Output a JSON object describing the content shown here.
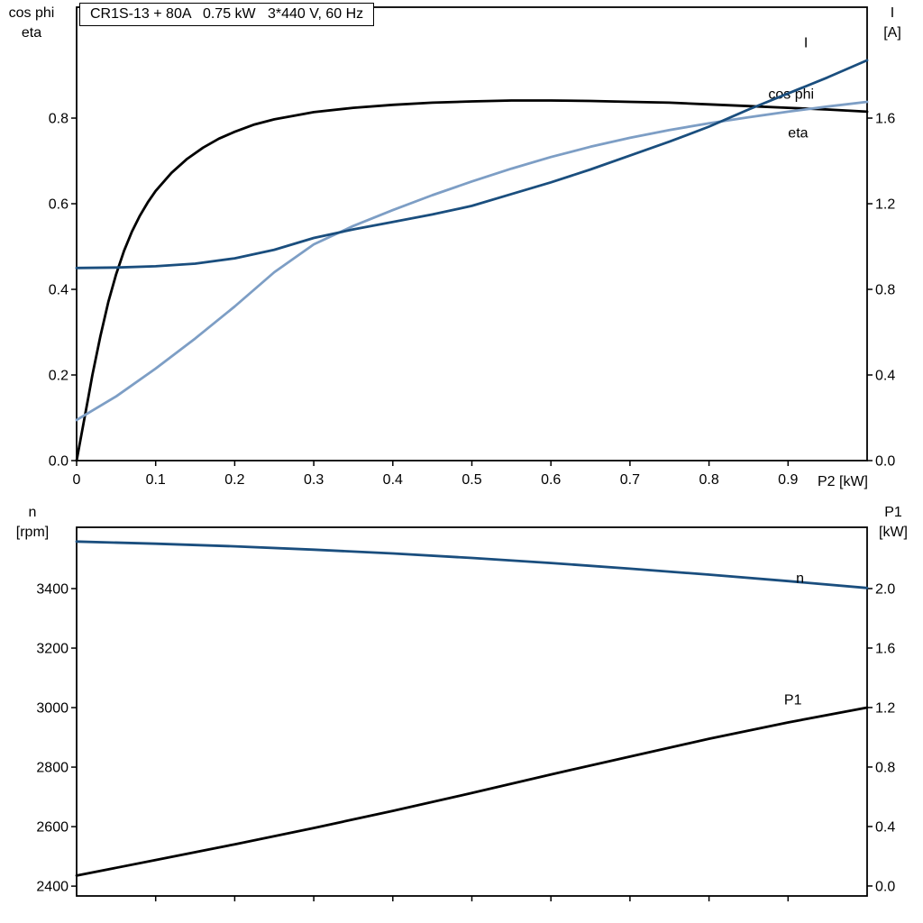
{
  "title_box": "CR1S-13 + 80A   0.75 kW   3*440 V, 60 Hz",
  "colors": {
    "dark_blue": "#1a4e7e",
    "light_blue": "#7d9ec5",
    "black": "#000000",
    "background": "#ffffff"
  },
  "chart_data": [
    {
      "type": "line",
      "title": "CR1S-13 + 80A   0.75 kW   3*440 V, 60 Hz",
      "x_axis": {
        "title": "P2 [kW]",
        "min": 0,
        "max": 1.0,
        "ticks": [
          0,
          0.1,
          0.2,
          0.3,
          0.4,
          0.5,
          0.6,
          0.7,
          0.8,
          0.9
        ],
        "labels": [
          "0",
          "0.1",
          "0.2",
          "0.3",
          "0.4",
          "0.5",
          "0.6",
          "0.7",
          "0.8",
          "0.9"
        ]
      },
      "left_axis": {
        "title": [
          "cos phi",
          "eta"
        ],
        "min": 0,
        "max": 1.059,
        "ticks": [
          0.0,
          0.2,
          0.4,
          0.6,
          0.8
        ],
        "labels": [
          "0.0",
          "0.2",
          "0.4",
          "0.6",
          "0.8"
        ]
      },
      "right_axis": {
        "title": [
          "I",
          "[A]"
        ],
        "min": 0,
        "max": 2.118,
        "ticks": [
          0.0,
          0.4,
          0.8,
          1.2,
          1.6
        ],
        "labels": [
          "0.0",
          "0.4",
          "0.8",
          "1.2",
          "1.6"
        ]
      },
      "series": [
        {
          "name": "eta",
          "axis": "left",
          "color": "#000000",
          "width": 2.8,
          "label": {
            "text": "eta",
            "x": 0.9,
            "y": 0.755,
            "anchor": "start"
          },
          "points": [
            [
              0,
              0
            ],
            [
              0.005,
              0.05
            ],
            [
              0.01,
              0.1
            ],
            [
              0.015,
              0.15
            ],
            [
              0.02,
              0.2
            ],
            [
              0.03,
              0.29
            ],
            [
              0.04,
              0.37
            ],
            [
              0.05,
              0.435
            ],
            [
              0.06,
              0.49
            ],
            [
              0.07,
              0.535
            ],
            [
              0.08,
              0.572
            ],
            [
              0.09,
              0.603
            ],
            [
              0.1,
              0.63
            ],
            [
              0.12,
              0.672
            ],
            [
              0.14,
              0.705
            ],
            [
              0.16,
              0.731
            ],
            [
              0.18,
              0.752
            ],
            [
              0.2,
              0.768
            ],
            [
              0.225,
              0.785
            ],
            [
              0.25,
              0.797
            ],
            [
              0.3,
              0.814
            ],
            [
              0.35,
              0.824
            ],
            [
              0.4,
              0.831
            ],
            [
              0.45,
              0.836
            ],
            [
              0.5,
              0.839
            ],
            [
              0.55,
              0.841
            ],
            [
              0.6,
              0.841
            ],
            [
              0.65,
              0.84
            ],
            [
              0.7,
              0.838
            ],
            [
              0.75,
              0.836
            ],
            [
              0.8,
              0.832
            ],
            [
              0.85,
              0.828
            ],
            [
              0.9,
              0.824
            ],
            [
              0.95,
              0.82
            ],
            [
              1.0,
              0.815
            ]
          ]
        },
        {
          "name": "cos-phi",
          "axis": "left",
          "color": "#7d9ec5",
          "width": 2.8,
          "label": {
            "text": "cos phi",
            "x": 0.875,
            "y": 0.845,
            "anchor": "start"
          },
          "points": [
            [
              0,
              0.095
            ],
            [
              0.05,
              0.15
            ],
            [
              0.1,
              0.215
            ],
            [
              0.15,
              0.285
            ],
            [
              0.2,
              0.36
            ],
            [
              0.25,
              0.44
            ],
            [
              0.3,
              0.505
            ],
            [
              0.35,
              0.548
            ],
            [
              0.4,
              0.585
            ],
            [
              0.45,
              0.62
            ],
            [
              0.5,
              0.652
            ],
            [
              0.55,
              0.682
            ],
            [
              0.6,
              0.709
            ],
            [
              0.65,
              0.733
            ],
            [
              0.7,
              0.754
            ],
            [
              0.75,
              0.772
            ],
            [
              0.8,
              0.788
            ],
            [
              0.85,
              0.802
            ],
            [
              0.9,
              0.815
            ],
            [
              0.95,
              0.827
            ],
            [
              1.0,
              0.838
            ]
          ]
        },
        {
          "name": "current",
          "axis": "right",
          "color": "#1a4e7e",
          "width": 2.8,
          "label": {
            "text": "I",
            "x": 0.92,
            "y": 1.93,
            "anchor": "start"
          },
          "points": [
            [
              0,
              0.9
            ],
            [
              0.05,
              0.902
            ],
            [
              0.1,
              0.908
            ],
            [
              0.15,
              0.92
            ],
            [
              0.2,
              0.945
            ],
            [
              0.25,
              0.985
            ],
            [
              0.3,
              1.04
            ],
            [
              0.35,
              1.08
            ],
            [
              0.4,
              1.115
            ],
            [
              0.45,
              1.15
            ],
            [
              0.5,
              1.19
            ],
            [
              0.55,
              1.245
            ],
            [
              0.6,
              1.3
            ],
            [
              0.65,
              1.36
            ],
            [
              0.7,
              1.425
            ],
            [
              0.75,
              1.49
            ],
            [
              0.8,
              1.56
            ],
            [
              0.85,
              1.64
            ],
            [
              0.9,
              1.715
            ],
            [
              0.95,
              1.79
            ],
            [
              1.0,
              1.87
            ]
          ]
        }
      ]
    },
    {
      "type": "line",
      "x_axis": {
        "title": "",
        "min": 0,
        "max": 1.0,
        "ticks": [
          0.1,
          0.2,
          0.3,
          0.4,
          0.5,
          0.6,
          0.7,
          0.8,
          0.9
        ],
        "labels": []
      },
      "left_axis": {
        "title": [
          "n",
          "[rpm]"
        ],
        "min": 2367,
        "max": 3606,
        "ticks": [
          2400,
          2600,
          2800,
          3000,
          3200,
          3400
        ],
        "labels": [
          "2400",
          "2600",
          "2800",
          "3000",
          "3200",
          "3400"
        ]
      },
      "right_axis": {
        "title": [
          "P1",
          "[kW]"
        ],
        "min": -0.067,
        "max": 2.412,
        "ticks": [
          0.0,
          0.4,
          0.8,
          1.2,
          1.6,
          2.0
        ],
        "labels": [
          "0.0",
          "0.4",
          "0.8",
          "1.2",
          "1.6",
          "2.0"
        ]
      },
      "series": [
        {
          "name": "speed",
          "axis": "left",
          "color": "#1a4e7e",
          "width": 2.8,
          "label": {
            "text": "n",
            "x": 0.91,
            "y": 3420,
            "anchor": "start"
          },
          "points": [
            [
              0,
              3558
            ],
            [
              0.1,
              3551
            ],
            [
              0.2,
              3542
            ],
            [
              0.3,
              3531
            ],
            [
              0.4,
              3518
            ],
            [
              0.5,
              3503
            ],
            [
              0.6,
              3486
            ],
            [
              0.7,
              3467
            ],
            [
              0.8,
              3447
            ],
            [
              0.9,
              3425
            ],
            [
              1.0,
              3402
            ]
          ]
        },
        {
          "name": "input-power",
          "axis": "right",
          "color": "#000000",
          "width": 2.8,
          "label": {
            "text": "P1",
            "x": 0.895,
            "y": 1.22,
            "anchor": "start"
          },
          "points": [
            [
              0,
              0.07
            ],
            [
              0.1,
              0.175
            ],
            [
              0.2,
              0.28
            ],
            [
              0.3,
              0.39
            ],
            [
              0.4,
              0.505
            ],
            [
              0.5,
              0.625
            ],
            [
              0.6,
              0.75
            ],
            [
              0.7,
              0.87
            ],
            [
              0.8,
              0.99
            ],
            [
              0.9,
              1.1
            ],
            [
              1.0,
              1.2
            ]
          ]
        }
      ]
    }
  ]
}
